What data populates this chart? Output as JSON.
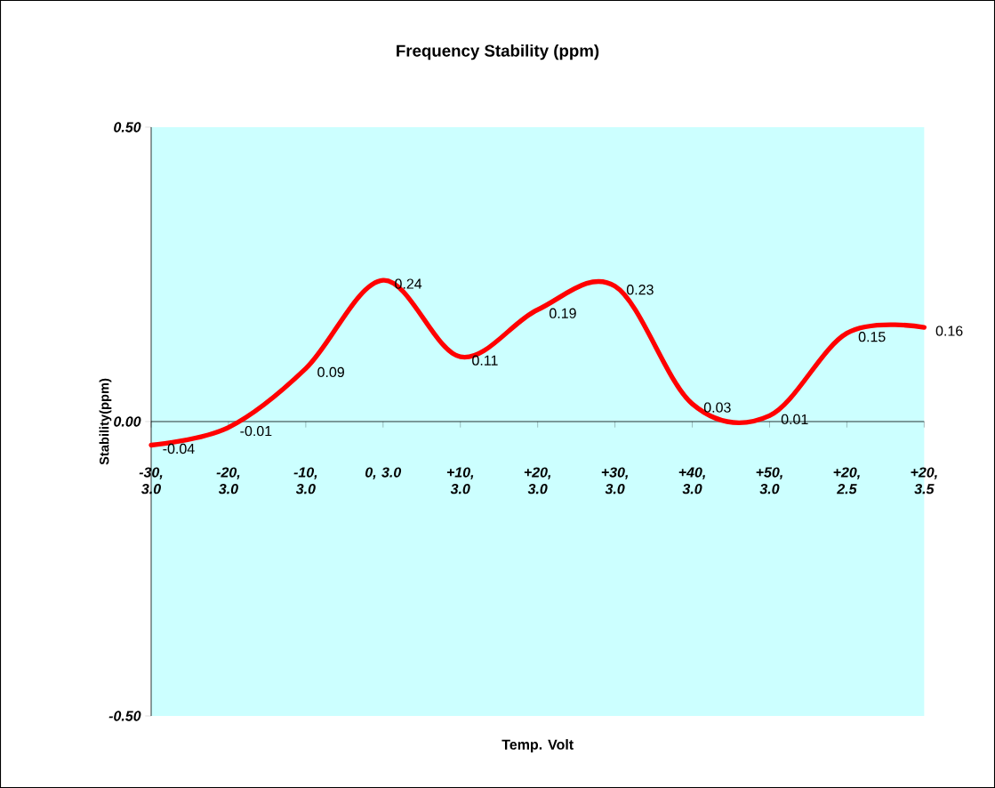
{
  "chart_data": {
    "type": "line",
    "title": "Frequency Stability (ppm)",
    "xlabel": "Temp. Volt",
    "ylabel": "Stability(ppm)",
    "categories": [
      "-30, 3.0",
      "-20, 3.0",
      "-10, 3.0",
      "0, 3.0",
      "+10, 3.0",
      "+20, 3.0",
      "+30, 3.0",
      "+40, 3.0",
      "+50, 3.0",
      "+20, 2.5",
      "+20, 3.5"
    ],
    "series": [
      {
        "color": "#ff0000",
        "values": [
          -0.04,
          -0.01,
          0.09,
          0.24,
          0.11,
          0.19,
          0.23,
          0.03,
          0.01,
          0.15,
          0.16
        ]
      }
    ],
    "ylim": [
      -0.5,
      0.5
    ],
    "yticks": [
      {
        "value": -0.5,
        "label": "-0.50"
      },
      {
        "value": 0,
        "label": "0.00"
      },
      {
        "value": 0.5,
        "label": "0.50"
      }
    ],
    "data_labels": true
  }
}
